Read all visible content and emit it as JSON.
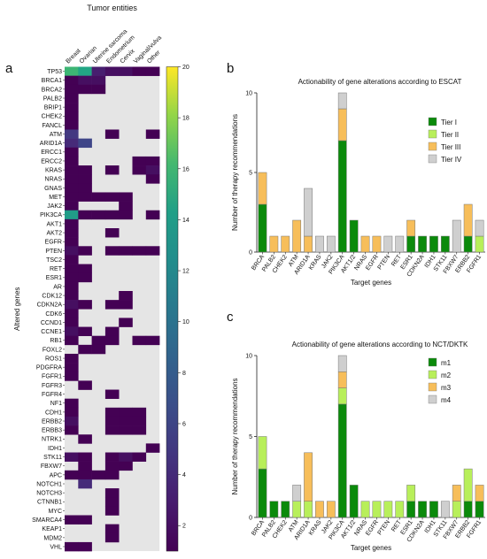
{
  "panels": {
    "a": "a",
    "b": "b",
    "c": "c"
  },
  "chart_data": [
    {
      "type": "heatmap",
      "title": "Tumor entities",
      "ylabel": "Altered genes",
      "columns": [
        "Breast",
        "Ovarian",
        "Uterine sarcoma",
        "Endometrium",
        "Cervix",
        "Vaginal/vulva",
        "Other"
      ],
      "rows": [
        "TP53",
        "BRCA1",
        "BRCA2",
        "PALB2",
        "BRIP1",
        "CHEK2",
        "FANCL",
        "ATM",
        "ARID1A",
        "ERCC1",
        "ERCC2",
        "KRAS",
        "NRAS",
        "GNAS",
        "MET",
        "JAK2",
        "PIK3CA",
        "AKT1",
        "AKT2",
        "EGFR",
        "PTEN",
        "TSC2",
        "RET",
        "ESR1",
        "AR",
        "CDK12",
        "CDKN2A",
        "CDK6",
        "CCND1",
        "CCNE1",
        "RB1",
        "FOXL2",
        "ROS1",
        "PDGFRA",
        "FGFR1",
        "FGFR3",
        "FGFR4",
        "NF1",
        "CDH1",
        "ERBB2",
        "ERBB3",
        "NTRK1",
        "IDH1",
        "STK11",
        "FBXW7",
        "APC",
        "NOTCH1",
        "NOTCH3",
        "CTNNB1",
        "MYC",
        "SMARCA4",
        "KEAP1",
        "MDM2",
        "VHL"
      ],
      "values": [
        [
          16,
          15,
          3,
          2,
          2,
          1,
          1
        ],
        [
          1,
          2,
          2,
          0,
          0,
          0,
          0
        ],
        [
          1,
          1,
          1,
          0,
          0,
          0,
          0
        ],
        [
          1,
          0,
          0,
          0,
          0,
          0,
          0
        ],
        [
          1,
          0,
          0,
          0,
          0,
          0,
          0
        ],
        [
          1,
          0,
          0,
          0,
          0,
          0,
          0
        ],
        [
          1,
          0,
          0,
          0,
          0,
          0,
          0
        ],
        [
          5,
          0,
          0,
          1,
          0,
          0,
          1
        ],
        [
          4,
          6,
          0,
          0,
          0,
          0,
          0
        ],
        [
          1,
          0,
          0,
          0,
          0,
          0,
          0
        ],
        [
          1,
          0,
          0,
          0,
          0,
          1,
          1
        ],
        [
          1,
          1,
          0,
          1,
          0,
          1,
          2
        ],
        [
          1,
          1,
          0,
          0,
          0,
          0,
          1
        ],
        [
          1,
          1,
          0,
          0,
          0,
          0,
          0
        ],
        [
          1,
          1,
          1,
          1,
          1,
          0,
          0
        ],
        [
          1,
          0,
          0,
          0,
          1,
          0,
          0
        ],
        [
          14,
          1,
          1,
          1,
          1,
          0,
          1
        ],
        [
          1,
          0,
          0,
          0,
          0,
          0,
          0
        ],
        [
          1,
          0,
          0,
          1,
          0,
          0,
          0
        ],
        [
          1,
          0,
          0,
          0,
          0,
          0,
          0
        ],
        [
          2,
          1,
          0,
          1,
          1,
          1,
          1
        ],
        [
          1,
          0,
          0,
          0,
          0,
          0,
          0
        ],
        [
          1,
          1,
          0,
          0,
          0,
          0,
          0
        ],
        [
          1,
          1,
          0,
          0,
          0,
          0,
          0
        ],
        [
          1,
          0,
          0,
          0,
          0,
          0,
          0
        ],
        [
          1,
          0,
          0,
          0,
          1,
          0,
          0
        ],
        [
          2,
          1,
          0,
          1,
          1,
          0,
          0
        ],
        [
          1,
          0,
          0,
          0,
          0,
          0,
          0
        ],
        [
          1,
          0,
          0,
          0,
          1,
          0,
          0
        ],
        [
          2,
          1,
          0,
          1,
          0,
          0,
          0
        ],
        [
          1,
          0,
          1,
          1,
          0,
          1,
          1
        ],
        [
          0,
          1,
          1,
          0,
          0,
          0,
          0
        ],
        [
          1,
          0,
          0,
          0,
          0,
          0,
          0
        ],
        [
          1,
          0,
          0,
          0,
          0,
          0,
          0
        ],
        [
          1,
          0,
          0,
          0,
          0,
          0,
          0
        ],
        [
          0,
          1,
          0,
          0,
          0,
          0,
          0
        ],
        [
          0,
          0,
          0,
          1,
          0,
          0,
          0
        ],
        [
          1,
          0,
          0,
          0,
          0,
          0,
          0
        ],
        [
          1,
          0,
          0,
          1,
          1,
          1,
          0
        ],
        [
          2,
          0,
          0,
          1,
          1,
          1,
          0
        ],
        [
          1,
          0,
          0,
          1,
          1,
          1,
          0
        ],
        [
          0,
          1,
          0,
          0,
          0,
          0,
          0
        ],
        [
          0,
          0,
          0,
          0,
          0,
          0,
          1
        ],
        [
          2,
          1,
          0,
          1,
          2,
          1,
          0
        ],
        [
          0,
          1,
          0,
          1,
          1,
          0,
          0
        ],
        [
          1,
          1,
          1,
          1,
          0,
          0,
          0
        ],
        [
          0,
          4,
          0,
          0,
          0,
          0,
          0
        ],
        [
          0,
          0,
          0,
          1,
          0,
          0,
          0
        ],
        [
          0,
          0,
          0,
          1,
          0,
          0,
          0
        ],
        [
          0,
          0,
          0,
          1,
          0,
          0,
          0
        ],
        [
          1,
          1,
          0,
          0,
          0,
          0,
          0
        ],
        [
          0,
          0,
          0,
          1,
          0,
          0,
          0
        ],
        [
          0,
          0,
          0,
          1,
          0,
          0,
          0
        ],
        [
          1,
          1,
          0,
          0,
          0,
          0,
          0
        ]
      ],
      "colorbar": {
        "min": 1,
        "max": 20,
        "ticks": [
          2,
          4,
          6,
          8,
          10,
          12,
          14,
          16,
          18,
          20
        ]
      },
      "empty_color": "#e5e5e5"
    },
    {
      "type": "bar",
      "stacked": true,
      "title": "Actionability of gene alterations according to ESCAT",
      "xlabel": "Target genes",
      "ylabel": "Number of therapy recommendations",
      "ylim": [
        0,
        10
      ],
      "yticks": [
        0,
        5,
        10
      ],
      "categories": [
        "BRCA",
        "PALB2",
        "CHEK2",
        "ATM",
        "ARID1A",
        "KRAS",
        "JAK2",
        "PIK3CA",
        "AKT1/2",
        "NRAS",
        "EGFR",
        "PTEN",
        "RET",
        "ESR1",
        "CDKN2A",
        "IDH1",
        "STK11",
        "FBXW7",
        "ERBB2",
        "FGFR1"
      ],
      "series": [
        {
          "name": "Tier I",
          "color": "#0b8a0b",
          "values": [
            3,
            0,
            0,
            0,
            0,
            0,
            0,
            7,
            2,
            0,
            0,
            0,
            0,
            1,
            1,
            1,
            1,
            0,
            1,
            0
          ]
        },
        {
          "name": "Tier II",
          "color": "#b8ef5a",
          "values": [
            0,
            0,
            0,
            0,
            0,
            0,
            0,
            0,
            0,
            0,
            0,
            0,
            0,
            0,
            0,
            0,
            0,
            0,
            0,
            1
          ]
        },
        {
          "name": "Tier III",
          "color": "#f7be5a",
          "values": [
            2,
            1,
            1,
            2,
            1,
            0,
            0,
            2,
            0,
            1,
            1,
            0,
            0,
            1,
            0,
            0,
            0,
            0,
            2,
            0
          ]
        },
        {
          "name": "Tier IV",
          "color": "#cfcfcf",
          "values": [
            0,
            0,
            0,
            0,
            3,
            1,
            1,
            1,
            0,
            0,
            0,
            1,
            1,
            0,
            0,
            0,
            0,
            2,
            0,
            1
          ]
        }
      ],
      "legend": "top-right"
    },
    {
      "type": "bar",
      "stacked": true,
      "title": "Actionability of gene alterations according to NCT/DKTK",
      "xlabel": "Target genes",
      "ylabel": "Number of therapy recommendations",
      "ylim": [
        0,
        10
      ],
      "yticks": [
        0,
        5,
        10
      ],
      "categories": [
        "BRCA",
        "PALB2",
        "CHEK2",
        "ATM",
        "ARID1A",
        "KRAS",
        "JAK2",
        "PIK3CA",
        "AKT1/2",
        "NRAS",
        "EGFR",
        "PTEN",
        "RET",
        "ESR1",
        "CDKN2A",
        "IDH1",
        "STK11",
        "FBXW7",
        "ERBB2",
        "FGFR1"
      ],
      "series": [
        {
          "name": "m1",
          "color": "#0b8a0b",
          "values": [
            3,
            1,
            1,
            0,
            0,
            0,
            0,
            7,
            2,
            0,
            0,
            0,
            0,
            1,
            1,
            1,
            0,
            0,
            1,
            1
          ]
        },
        {
          "name": "m2",
          "color": "#b8ef5a",
          "values": [
            2,
            0,
            0,
            1,
            1,
            0,
            0,
            1,
            0,
            1,
            1,
            1,
            1,
            1,
            0,
            0,
            0,
            1,
            2,
            0
          ]
        },
        {
          "name": "m3",
          "color": "#f7be5a",
          "values": [
            0,
            0,
            0,
            0,
            3,
            1,
            1,
            1,
            0,
            0,
            0,
            0,
            0,
            0,
            0,
            0,
            0,
            1,
            0,
            1
          ]
        },
        {
          "name": "m4",
          "color": "#cfcfcf",
          "values": [
            0,
            0,
            0,
            1,
            0,
            0,
            0,
            1,
            0,
            0,
            0,
            0,
            0,
            0,
            0,
            0,
            1,
            0,
            0,
            0
          ]
        }
      ],
      "legend": "top-right"
    }
  ]
}
